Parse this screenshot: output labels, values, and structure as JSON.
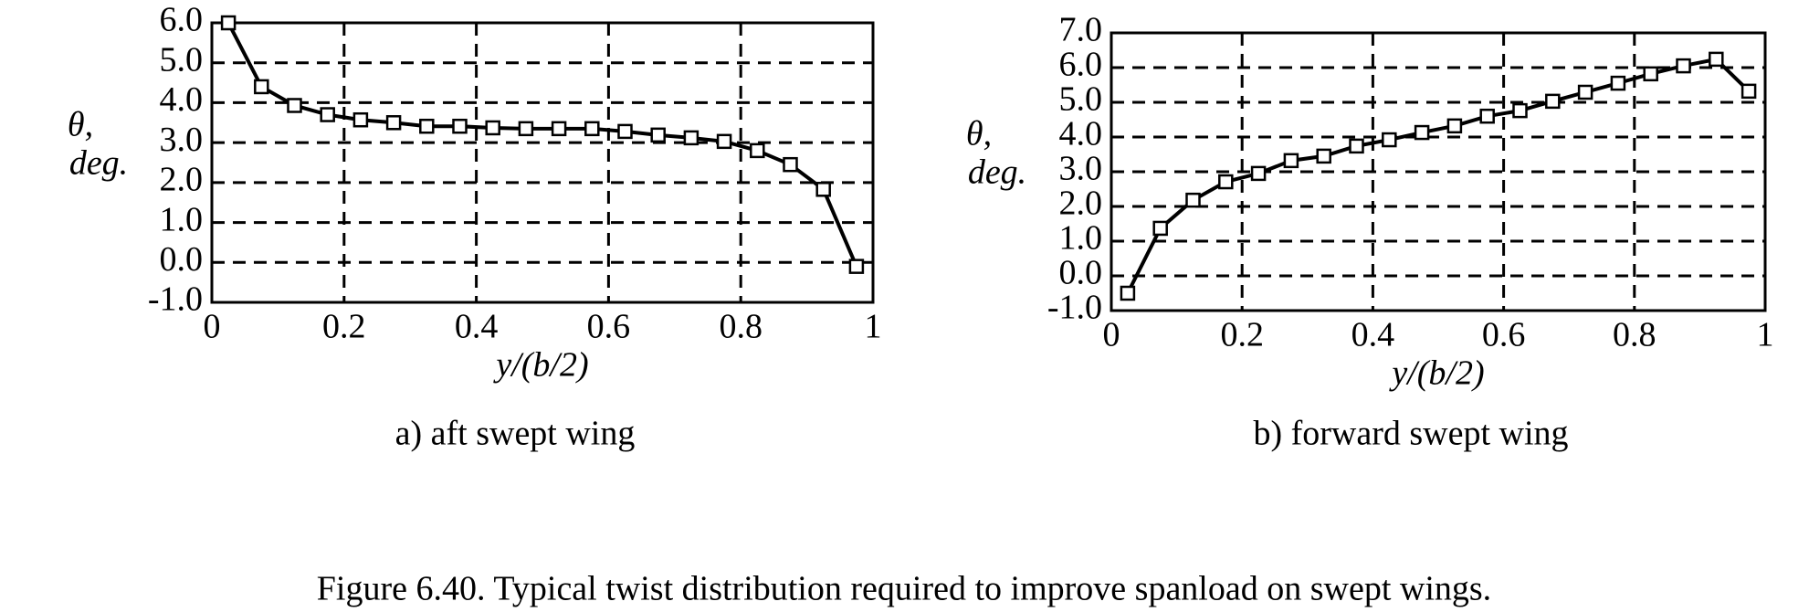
{
  "chart_data": [
    {
      "type": "line",
      "title": "a) aft swept wing",
      "y_label": [
        "θ,",
        "deg."
      ],
      "x_label": "y/(b/2)",
      "color": "#000000",
      "marker": "square",
      "grid": true,
      "x": [
        0.025,
        0.075,
        0.125,
        0.175,
        0.225,
        0.275,
        0.325,
        0.375,
        0.425,
        0.475,
        0.525,
        0.575,
        0.625,
        0.675,
        0.725,
        0.775,
        0.825,
        0.875,
        0.925,
        0.975
      ],
      "values": [
        6.0,
        4.4,
        3.93,
        3.7,
        3.57,
        3.5,
        3.41,
        3.41,
        3.37,
        3.35,
        3.35,
        3.35,
        3.28,
        3.19,
        3.12,
        3.03,
        2.8,
        2.45,
        1.83,
        -0.1
      ],
      "xlim": [
        0,
        1
      ],
      "ylim": [
        -1,
        6
      ],
      "xticks": [
        0,
        0.2,
        0.4,
        0.6,
        0.8,
        1
      ],
      "yticks": [
        {
          "value": -1,
          "label": "-1.0"
        },
        {
          "value": 0,
          "label": "0.0"
        },
        {
          "value": 1,
          "label": "1.0"
        },
        {
          "value": 2,
          "label": "2.0"
        },
        {
          "value": 3,
          "label": "3.0"
        },
        {
          "value": 4,
          "label": "4.0"
        },
        {
          "value": 5,
          "label": "5.0"
        },
        {
          "value": 6,
          "label": "6.0"
        }
      ]
    },
    {
      "type": "line",
      "title": "b) forward swept wing",
      "y_label": [
        "θ,",
        "deg."
      ],
      "x_label": "y/(b/2)",
      "color": "#000000",
      "marker": "square",
      "grid": true,
      "x": [
        0.025,
        0.075,
        0.125,
        0.175,
        0.225,
        0.275,
        0.325,
        0.375,
        0.425,
        0.475,
        0.525,
        0.575,
        0.625,
        0.675,
        0.725,
        0.775,
        0.825,
        0.875,
        0.925,
        0.975
      ],
      "values": [
        -0.5,
        1.37,
        2.18,
        2.71,
        2.95,
        3.32,
        3.45,
        3.74,
        3.92,
        4.13,
        4.32,
        4.6,
        4.76,
        5.03,
        5.29,
        5.55,
        5.82,
        6.05,
        6.24,
        5.32
      ],
      "xlim": [
        0,
        1
      ],
      "ylim": [
        -1,
        7
      ],
      "xticks": [
        0,
        0.2,
        0.4,
        0.6,
        0.8,
        1
      ],
      "yticks": [
        {
          "value": -1,
          "label": "-1.0"
        },
        {
          "value": 0,
          "label": "0.0"
        },
        {
          "value": 1,
          "label": "1.0"
        },
        {
          "value": 2,
          "label": "2.0"
        },
        {
          "value": 3,
          "label": "3.0"
        },
        {
          "value": 4,
          "label": "4.0"
        },
        {
          "value": 5,
          "label": "5.0"
        },
        {
          "value": 6,
          "label": "6.0"
        },
        {
          "value": 7,
          "label": "7.0"
        }
      ]
    }
  ],
  "figure_caption": "Figure 6.40. Typical twist distribution required to improve spanload on swept wings."
}
